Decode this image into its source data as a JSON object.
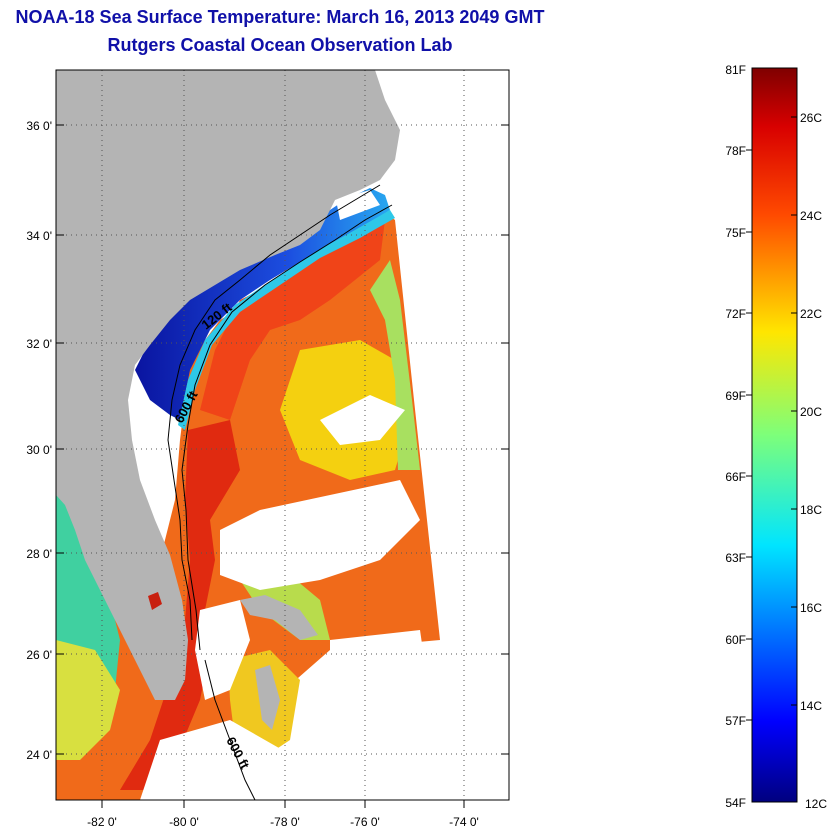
{
  "title": "NOAA-18 Sea Surface Temperature:  March 16, 2013 2049 GMT",
  "subtitle": "Rutgers Coastal Ocean Observation Lab",
  "map": {
    "lat_ticks": [
      "36 0'",
      "34 0'",
      "32 0'",
      "30 0'",
      "28 0'",
      "26 0'",
      "24 0'"
    ],
    "lon_ticks": [
      "-82 0'",
      "-80 0'",
      "-78 0'",
      "-76 0'",
      "-74 0'"
    ],
    "contours": [
      "120 ft",
      "600 ft",
      "600 ft"
    ],
    "colors": {
      "land": "#b4b4b4",
      "cloud": "#ffffff",
      "cold": "#0a1aa0",
      "warm": "#e83a10"
    }
  },
  "colorbar": {
    "f_labels": [
      "81F",
      "78F",
      "75F",
      "72F",
      "69F",
      "66F",
      "63F",
      "60F",
      "57F",
      "54F"
    ],
    "c_labels": [
      "26C",
      "24C",
      "22C",
      "20C",
      "18C",
      "16C",
      "14C",
      "12C"
    ]
  }
}
